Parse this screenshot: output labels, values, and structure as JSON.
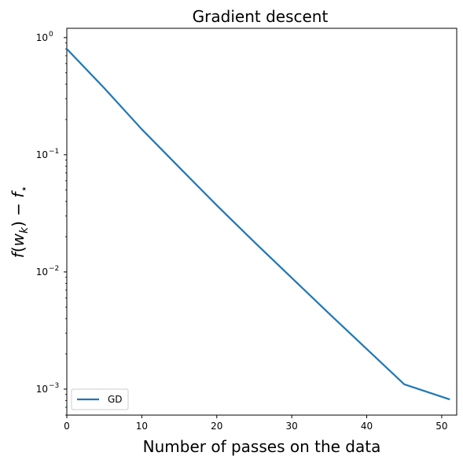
{
  "chart_data": {
    "type": "line",
    "title": "Gradient descent",
    "xlabel": "Number of passes on the data",
    "ylabel": "f(w_k) − f_⋆",
    "ylabel_parts": {
      "f": "f",
      "open": "(",
      "w": "w",
      "sub_k": "k",
      "close": ") − ",
      "fstar": "f",
      "sub_star": "⋆"
    },
    "xscale": "linear",
    "yscale": "log",
    "xlim": [
      0,
      52
    ],
    "ylim": [
      0.0006,
      1.2
    ],
    "xticks": [
      0,
      10,
      20,
      30,
      40,
      50
    ],
    "xtick_labels": [
      "0",
      "10",
      "20",
      "30",
      "40",
      "50"
    ],
    "yticks": [
      0.001,
      0.01,
      0.1,
      1
    ],
    "ytick_labels": [
      {
        "base": "10",
        "exp": "−3"
      },
      {
        "base": "10",
        "exp": "−2"
      },
      {
        "base": "10",
        "exp": "−1"
      },
      {
        "base": "10",
        "exp": "0"
      }
    ],
    "grid": false,
    "legend_position": "lower-left",
    "series": [
      {
        "name": "GD",
        "color": "#1f77b4",
        "x": [
          0,
          5,
          10,
          15,
          20,
          25,
          30,
          35,
          40,
          45,
          51
        ],
        "y": [
          0.8,
          0.37,
          0.165,
          0.078,
          0.037,
          0.018,
          0.0089,
          0.0044,
          0.0022,
          0.0011,
          0.00082
        ]
      }
    ]
  }
}
